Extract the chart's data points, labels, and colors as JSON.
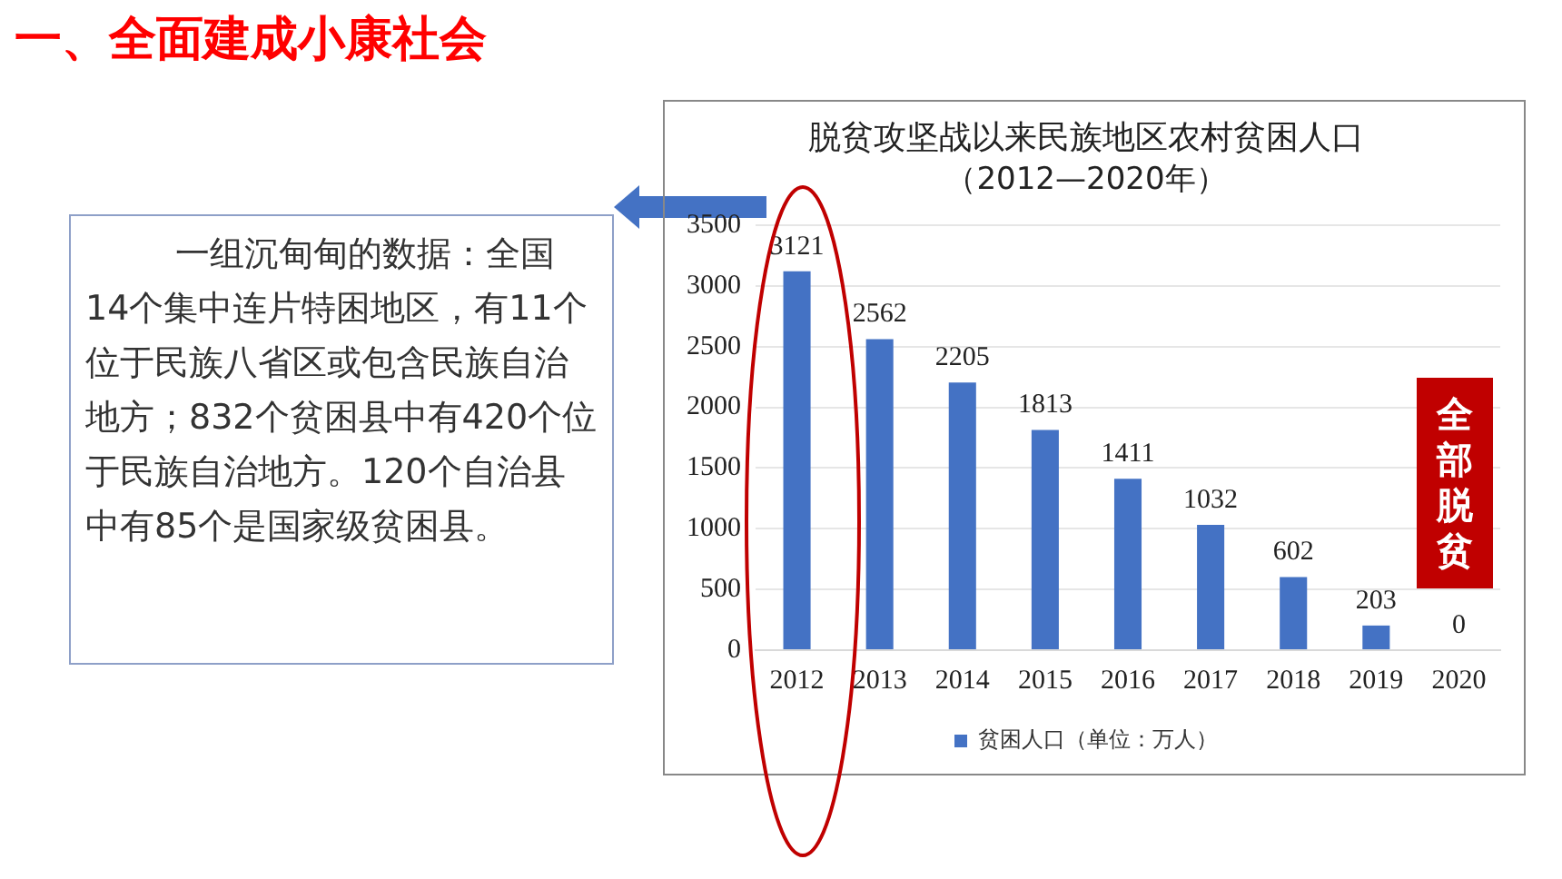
{
  "chart_data": {
    "type": "bar",
    "title": "脱贫攻坚战以来民族地区农村贫困人口",
    "subtitle": "（2012—2020年）",
    "categories": [
      "2012",
      "2013",
      "2014",
      "2015",
      "2016",
      "2017",
      "2018",
      "2019",
      "2020"
    ],
    "series": [
      {
        "name": "贫困人口（单位：万人）",
        "color": "#4472c4",
        "values": [
          3121,
          2562,
          2205,
          1813,
          1411,
          1032,
          602,
          203,
          0
        ]
      }
    ],
    "ylim": [
      0,
      3500
    ],
    "yticks": [
      0,
      500,
      1000,
      1500,
      2000,
      2500,
      3000,
      3500
    ],
    "grid": "y",
    "legend": "bottom",
    "data_labels": true,
    "annotations": [
      "一、全面建成小康社会",
      "一组沉甸甸的数据：全国14个集中连片特困地区，有11个位于民族八省区或包含民族自治地方；832个贫困县中有420个位于民族自治地方。120个自治县中有85个是国家级贫困县。",
      "全部脱贫"
    ]
  }
}
